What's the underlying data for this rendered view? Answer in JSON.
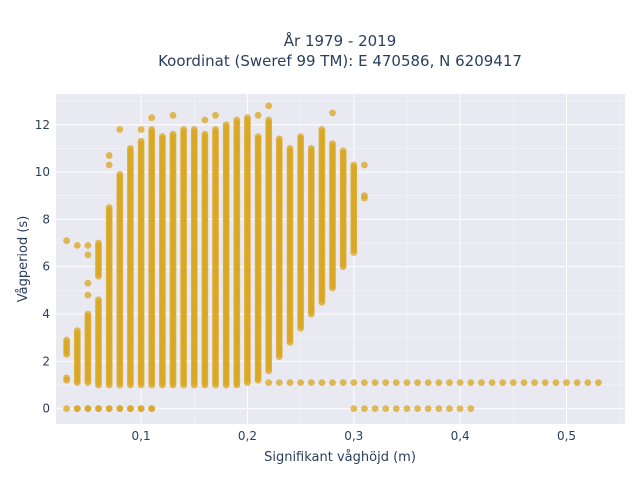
{
  "chart_data": {
    "type": "scatter",
    "title_line1": "År 1979 - 2019",
    "title_line2": "Koordinat (Sweref 99 TM): E 470586, N 6209417",
    "xlabel": "Signifikant våghöjd (m)",
    "ylabel": "Vågperiod (s)",
    "xlim": [
      0.02,
      0.555
    ],
    "ylim": [
      -0.65,
      13.3
    ],
    "x_ticks": [
      0.1,
      0.2,
      0.3,
      0.4,
      0.5
    ],
    "x_tick_labels": [
      "0,1",
      "0,2",
      "0,3",
      "0,4",
      "0,5"
    ],
    "y_ticks": [
      0,
      2,
      4,
      6,
      8,
      10,
      12
    ],
    "y_tick_labels": [
      "0",
      "2",
      "4",
      "6",
      "8",
      "10",
      "12"
    ],
    "marker_color": "#daa520",
    "plot_bg": "#e9e9f2",
    "grid": true,
    "x_step": 0.01,
    "columns": [
      {
        "x": 0.03,
        "segments": [
          [
            1.2,
            1.3
          ],
          [
            2.3,
            2.9
          ]
        ],
        "extra": [
          0,
          7.1
        ]
      },
      {
        "x": 0.04,
        "segments": [
          [
            1.1,
            3.3
          ]
        ],
        "extra": [
          0,
          6.9
        ]
      },
      {
        "x": 0.05,
        "segments": [
          [
            1.1,
            4.0
          ]
        ],
        "extra": [
          0,
          4.8,
          5.3,
          6.5,
          6.9
        ]
      },
      {
        "x": 0.06,
        "segments": [
          [
            1.0,
            4.6
          ],
          [
            5.6,
            7.0
          ]
        ],
        "extra": [
          0
        ]
      },
      {
        "x": 0.07,
        "segments": [
          [
            1.0,
            8.5
          ]
        ],
        "extra": [
          0,
          10.3,
          10.7
        ]
      },
      {
        "x": 0.08,
        "segments": [
          [
            1.0,
            9.9
          ]
        ],
        "extra": [
          0,
          11.8
        ]
      },
      {
        "x": 0.09,
        "segments": [
          [
            1.0,
            11.0
          ]
        ],
        "extra": [
          0
        ]
      },
      {
        "x": 0.1,
        "segments": [
          [
            1.0,
            11.3
          ]
        ],
        "extra": [
          0,
          11.8
        ]
      },
      {
        "x": 0.11,
        "segments": [
          [
            1.0,
            11.8
          ]
        ],
        "extra": [
          0,
          12.3
        ]
      },
      {
        "x": 0.12,
        "segments": [
          [
            1.0,
            11.5
          ]
        ],
        "extra": []
      },
      {
        "x": 0.13,
        "segments": [
          [
            1.0,
            11.6
          ]
        ],
        "extra": [
          12.4
        ]
      },
      {
        "x": 0.14,
        "segments": [
          [
            1.0,
            11.8
          ]
        ],
        "extra": []
      },
      {
        "x": 0.15,
        "segments": [
          [
            1.0,
            11.8
          ]
        ],
        "extra": []
      },
      {
        "x": 0.16,
        "segments": [
          [
            1.0,
            11.6
          ]
        ],
        "extra": [
          12.2
        ]
      },
      {
        "x": 0.17,
        "segments": [
          [
            1.0,
            11.8
          ]
        ],
        "extra": [
          12.4
        ]
      },
      {
        "x": 0.18,
        "segments": [
          [
            1.0,
            12.0
          ]
        ],
        "extra": []
      },
      {
        "x": 0.19,
        "segments": [
          [
            1.0,
            12.2
          ]
        ],
        "extra": []
      },
      {
        "x": 0.2,
        "segments": [
          [
            1.1,
            12.3
          ]
        ],
        "extra": []
      },
      {
        "x": 0.21,
        "segments": [
          [
            1.2,
            11.5
          ]
        ],
        "extra": [
          12.4
        ]
      },
      {
        "x": 0.22,
        "segments": [
          [
            1.6,
            12.2
          ]
        ],
        "extra": [
          12.8
        ]
      },
      {
        "x": 0.23,
        "segments": [
          [
            2.2,
            11.4
          ]
        ],
        "extra": []
      },
      {
        "x": 0.24,
        "segments": [
          [
            2.8,
            11.0
          ]
        ],
        "extra": []
      },
      {
        "x": 0.25,
        "segments": [
          [
            3.4,
            11.5
          ]
        ],
        "extra": []
      },
      {
        "x": 0.26,
        "segments": [
          [
            4.0,
            11.0
          ]
        ],
        "extra": []
      },
      {
        "x": 0.27,
        "segments": [
          [
            4.5,
            11.8
          ]
        ],
        "extra": []
      },
      {
        "x": 0.28,
        "segments": [
          [
            5.1,
            11.2
          ]
        ],
        "extra": [
          12.5
        ]
      },
      {
        "x": 0.29,
        "segments": [
          [
            6.0,
            10.9
          ]
        ],
        "extra": []
      },
      {
        "x": 0.3,
        "segments": [
          [
            6.6,
            10.3
          ]
        ],
        "extra": []
      },
      {
        "x": 0.31,
        "segments": [
          [
            8.9,
            9.0
          ]
        ],
        "extra": [
          10.3
        ]
      }
    ],
    "bottom_row": {
      "y": 0,
      "x": [
        0.04,
        0.05,
        0.06,
        0.07,
        0.08,
        0.09,
        0.1,
        0.11,
        0.3,
        0.31,
        0.32,
        0.33,
        0.34,
        0.35,
        0.36,
        0.37,
        0.38,
        0.39,
        0.4,
        0.41
      ]
    },
    "flat_row": {
      "x_from": 0.22,
      "x_to": 0.53,
      "y": 1.1
    }
  }
}
